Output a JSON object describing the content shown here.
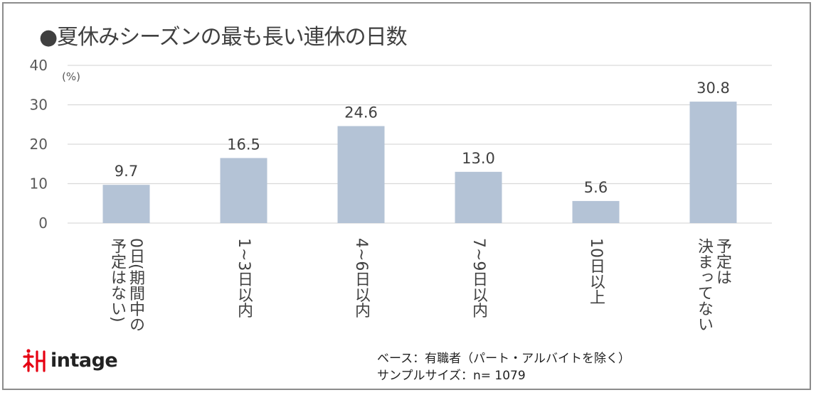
{
  "title": "●夏休みシーズンの最も長い連休の日数",
  "brand": {
    "name": "intage",
    "color": "#e60012"
  },
  "notes": {
    "base": "ベース：有職者（パート・アルバイトを除く）",
    "sample": "サンプルサイズ：n= 1079"
  },
  "chart_data": {
    "type": "bar",
    "title": "●夏休みシーズンの最も長い連休の日数",
    "unit": "(%)",
    "categories": [
      "0日(期間中の予定はない)",
      "1~3日以内",
      "4~6日以内",
      "7~9日以内",
      "10日以上",
      "決まってない予定は"
    ],
    "category_columns": [
      [
        "予定はない)",
        "0日(期間中の"
      ],
      [
        "1~3日以内"
      ],
      [
        "4~6日以内"
      ],
      [
        "7~9日以内"
      ],
      [
        "10日以上"
      ],
      [
        "決まってない",
        "予定は"
      ]
    ],
    "values": [
      9.7,
      16.5,
      24.6,
      13.0,
      5.6,
      30.8
    ],
    "value_labels": [
      "9.7",
      "16.5",
      "24.6",
      "13.0",
      "5.6",
      "30.8"
    ],
    "ylim": [
      0,
      40
    ],
    "yticks": [
      "0",
      "10",
      "20",
      "30",
      "40"
    ],
    "grid": true,
    "bar_color": "#b4c3d6",
    "grid_color": "#d9d9d9"
  }
}
